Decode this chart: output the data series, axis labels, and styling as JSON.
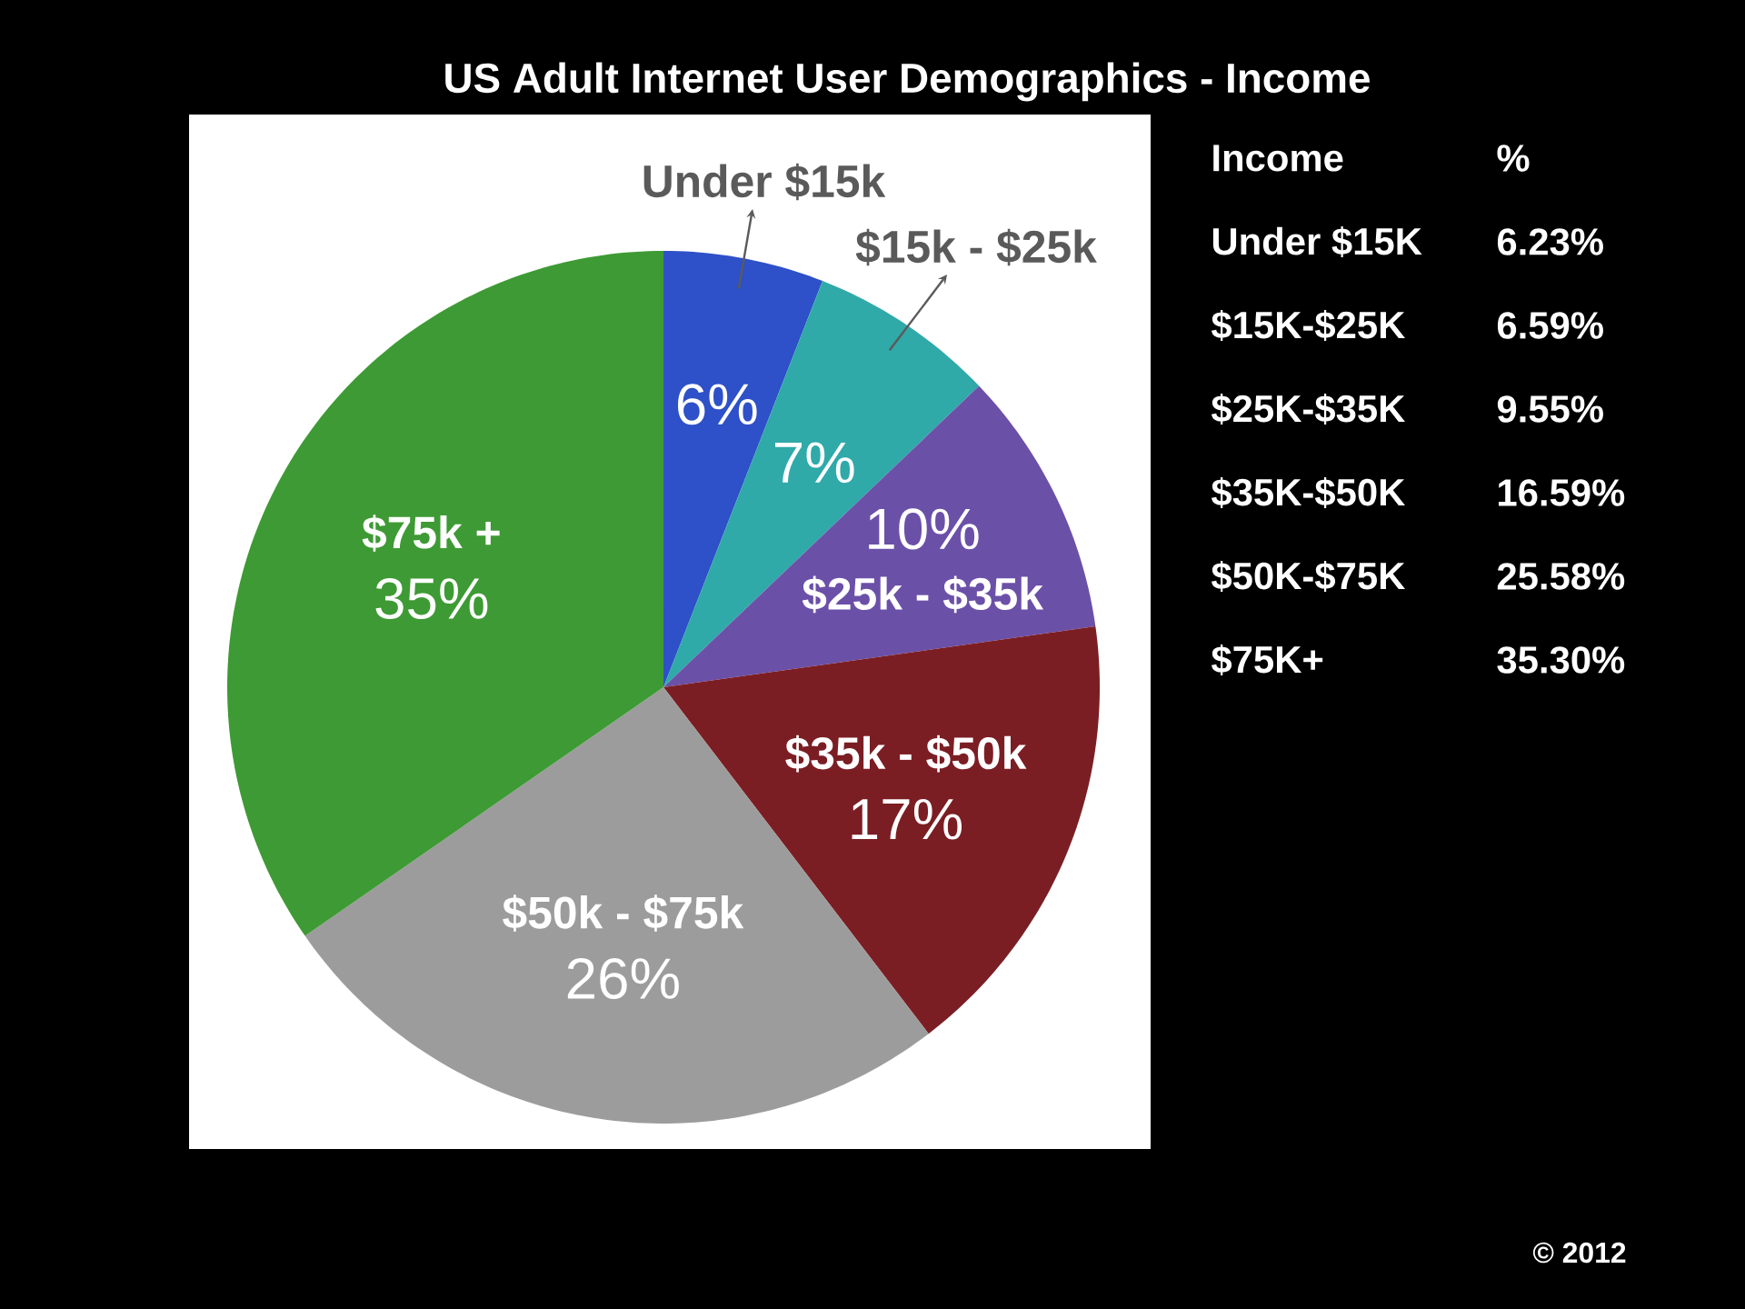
{
  "chart_data": [
    {
      "type": "pie",
      "title": "US Adult Internet User Demographics - Income",
      "categories": [
        "Under $15k",
        "$15k - $25k",
        "$25k - $35k",
        "$35k - $50k",
        "$50k - $75k",
        "$75k +"
      ],
      "values": [
        6,
        7,
        10,
        17,
        26,
        35
      ],
      "value_labels": [
        "6%",
        "7%",
        "10%",
        "17%",
        "26%",
        "35%"
      ],
      "colors": [
        "#2e50c8",
        "#30a9a9",
        "#6b50a8",
        "#7b1e24",
        "#9c9c9c",
        "#3e9a34"
      ],
      "annotations": [
        "© 2012"
      ]
    },
    {
      "type": "other",
      "xlabel": "Income",
      "ylabel": "%",
      "categories": [
        "Under $15K",
        "$15K-$25K",
        "$25K-$35K",
        "$35K-$50K",
        "$50K-$75K",
        "$75K+"
      ],
      "values": [
        6.23,
        6.59,
        9.55,
        16.59,
        25.58,
        35.3
      ],
      "value_labels": [
        "6.23%",
        "6.59%",
        "9.55%",
        "16.59%",
        "25.58%",
        "35.30%"
      ]
    }
  ]
}
